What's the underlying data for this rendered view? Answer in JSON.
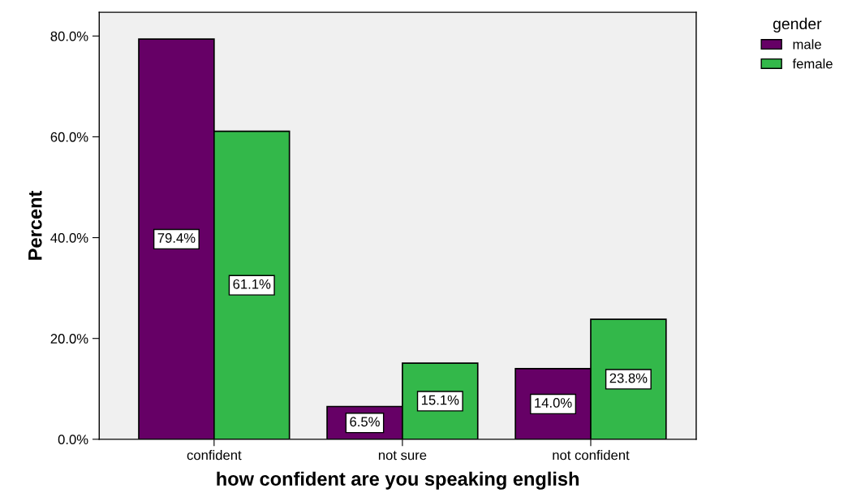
{
  "chart_data": {
    "type": "bar",
    "xlabel": "how confident are you speaking english",
    "ylabel": "Percent",
    "legend_title": "gender",
    "categories": [
      "confident",
      "not sure",
      "not confident"
    ],
    "series": [
      {
        "name": "male",
        "color": "#660066",
        "values": [
          79.4,
          6.5,
          14.0
        ],
        "value_labels": [
          "79.4%",
          "6.5%",
          "14.0%"
        ]
      },
      {
        "name": "female",
        "color": "#33b84a",
        "values": [
          61.1,
          15.1,
          23.8
        ],
        "value_labels": [
          "61.1%",
          "15.1%",
          "23.8%"
        ]
      }
    ],
    "ylim": [
      0,
      84.7
    ],
    "yticks": [
      {
        "value": 0,
        "label": "0.0%"
      },
      {
        "value": 20,
        "label": "20.0%"
      },
      {
        "value": 40,
        "label": "40.0%"
      },
      {
        "value": 60,
        "label": "60.0%"
      },
      {
        "value": 80,
        "label": "80.0%"
      }
    ],
    "grid": false,
    "legend": "top right"
  }
}
